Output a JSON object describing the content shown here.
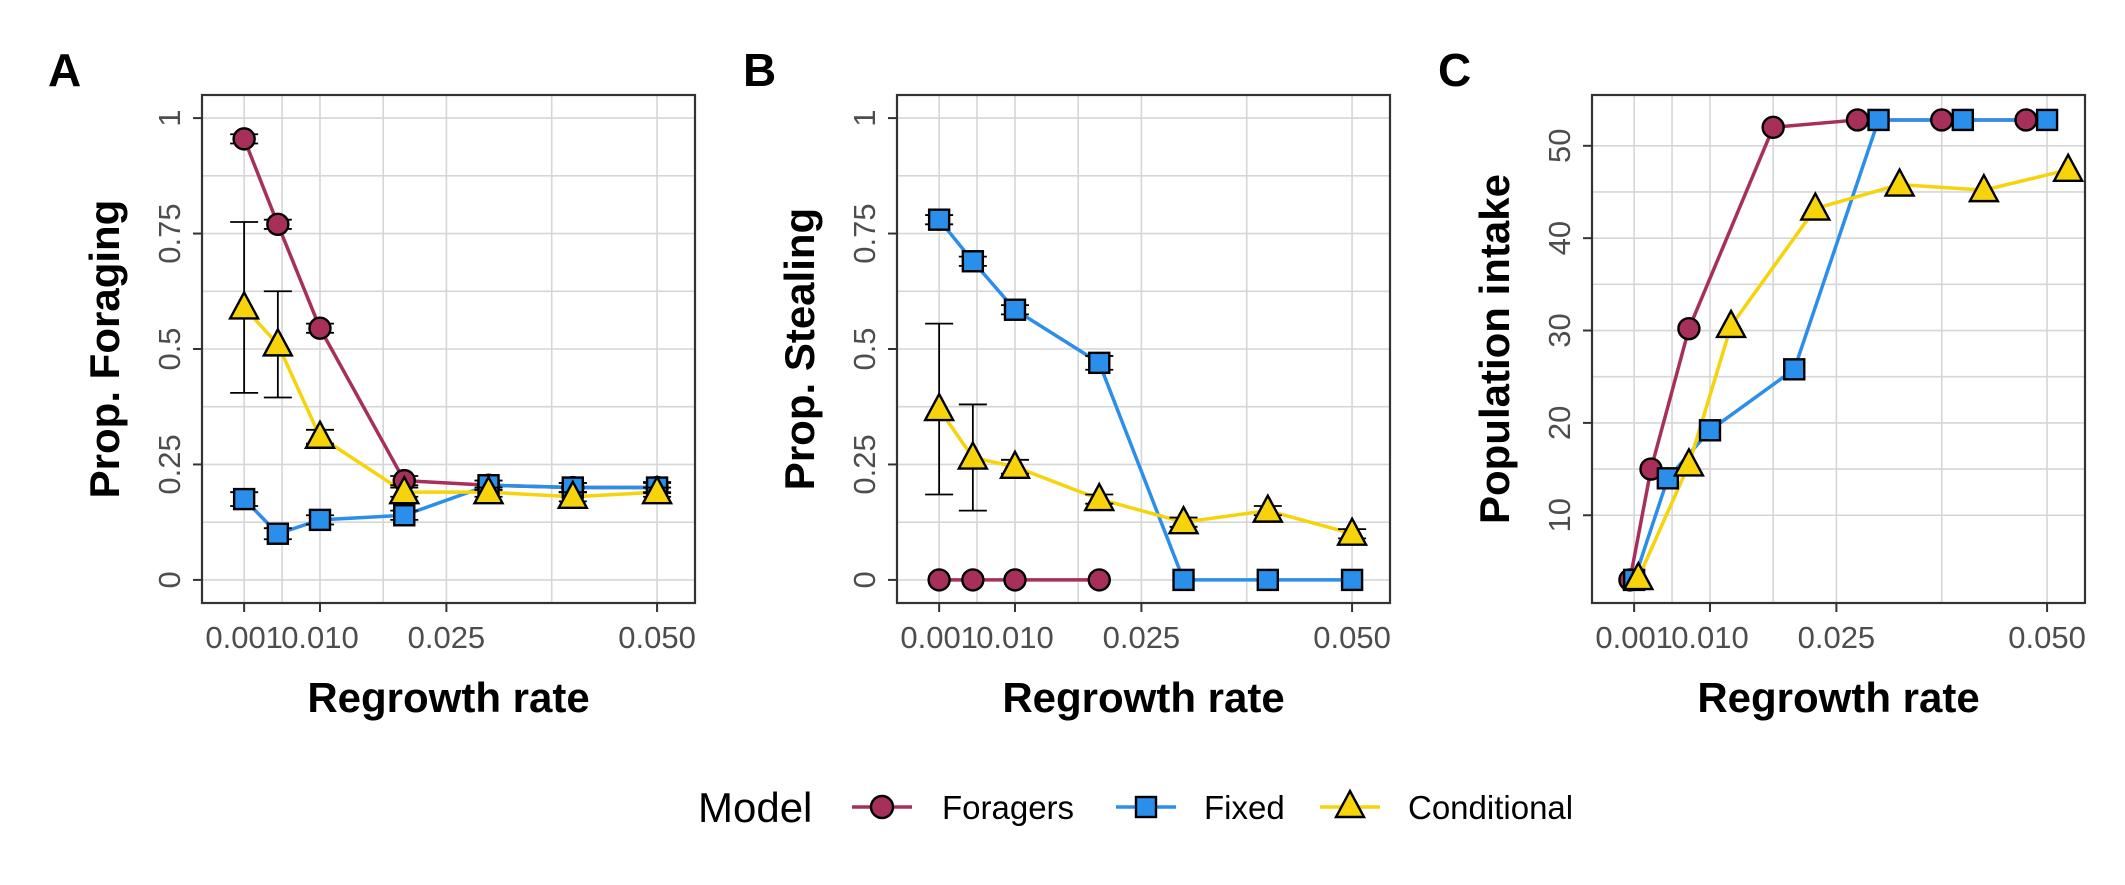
{
  "legend": {
    "title": "Model",
    "entries": [
      {
        "label": "Foragers",
        "color": "#A7305A",
        "shape": "circle"
      },
      {
        "label": "Fixed",
        "color": "#2A8EEB",
        "shape": "square"
      },
      {
        "label": "Conditional",
        "color": "#F6D30A",
        "shape": "triangle"
      }
    ]
  },
  "chart_data": [
    {
      "panel": "A",
      "type": "line",
      "xlabel": "Regrowth rate",
      "ylabel": "Prop. Foraging",
      "xlim": [
        -0.004,
        0.0545
      ],
      "ylim": [
        -0.05,
        1.05
      ],
      "xticks": [
        0.001,
        0.01,
        0.025,
        0.05
      ],
      "xtick_labels": [
        "0.001",
        "0.010",
        "0.025",
        "0.050"
      ],
      "yticks": [
        0,
        0.25,
        0.5,
        0.75,
        1
      ],
      "ytick_labels": [
        "0",
        "0.25",
        "0.5",
        "0.75",
        "1"
      ],
      "grid": true,
      "series": [
        {
          "name": "Foragers",
          "x": [
            0.001,
            0.005,
            0.01,
            0.02,
            0.03,
            0.04,
            0.05
          ],
          "y": [
            0.955,
            0.77,
            0.545,
            0.215,
            0.205,
            0.2,
            0.2
          ],
          "err": [
            0.01,
            0.01,
            0.01,
            0.01,
            0.01,
            0.01,
            0.01
          ]
        },
        {
          "name": "Fixed",
          "x": [
            0.001,
            0.005,
            0.01,
            0.02,
            0.03,
            0.04,
            0.05
          ],
          "y": [
            0.175,
            0.1,
            0.13,
            0.14,
            0.205,
            0.2,
            0.2
          ],
          "err": [
            0.015,
            0.012,
            0.01,
            0.01,
            0.01,
            0.01,
            0.012
          ]
        },
        {
          "name": "Conditional",
          "x": [
            0.001,
            0.005,
            0.01,
            0.02,
            0.03,
            0.04,
            0.05
          ],
          "y": [
            0.59,
            0.51,
            0.31,
            0.19,
            0.19,
            0.18,
            0.19
          ],
          "err": [
            0.185,
            0.115,
            0.015,
            0.01,
            0.01,
            0.01,
            0.01
          ]
        }
      ]
    },
    {
      "panel": "B",
      "type": "line",
      "xlabel": "Regrowth rate",
      "ylabel": "Prop. Stealing",
      "xlim": [
        -0.004,
        0.0545
      ],
      "ylim": [
        -0.05,
        1.05
      ],
      "xticks": [
        0.001,
        0.01,
        0.025,
        0.05
      ],
      "xtick_labels": [
        "0.001",
        "0.010",
        "0.025",
        "0.050"
      ],
      "yticks": [
        0,
        0.25,
        0.5,
        0.75,
        1
      ],
      "ytick_labels": [
        "0",
        "0.25",
        "0.5",
        "0.75",
        "1"
      ],
      "grid": true,
      "series": [
        {
          "name": "Foragers",
          "x": [
            0.001,
            0.005,
            0.01,
            0.02
          ],
          "y": [
            0,
            0,
            0,
            0
          ],
          "err": [
            0,
            0,
            0,
            0
          ]
        },
        {
          "name": "Fixed",
          "x": [
            0.001,
            0.005,
            0.01,
            0.02,
            0.03,
            0.04,
            0.05
          ],
          "y": [
            0.78,
            0.69,
            0.585,
            0.47,
            0,
            0,
            0
          ],
          "err": [
            0.01,
            0.01,
            0.01,
            0.015,
            0,
            0,
            0
          ]
        },
        {
          "name": "Conditional",
          "x": [
            0.001,
            0.005,
            0.01,
            0.02,
            0.03,
            0.04,
            0.05
          ],
          "y": [
            0.37,
            0.265,
            0.245,
            0.175,
            0.125,
            0.15,
            0.1
          ],
          "err": [
            0.185,
            0.115,
            0.015,
            0.01,
            0.01,
            0.01,
            0.01
          ]
        }
      ]
    },
    {
      "panel": "C",
      "type": "line",
      "xlabel": "Regrowth rate",
      "ylabel": "Population intake",
      "xlim": [
        -0.004,
        0.0545
      ],
      "ylim": [
        0.5,
        55.5
      ],
      "xticks": [
        0.001,
        0.01,
        0.025,
        0.05
      ],
      "xtick_labels": [
        "0.001",
        "0.010",
        "0.025",
        "0.050"
      ],
      "yticks": [
        10,
        20,
        30,
        40,
        50
      ],
      "ytick_labels": [
        "10",
        "20",
        "30",
        "40",
        "50"
      ],
      "grid": true,
      "series": [
        {
          "name": "Foragers",
          "x": [
            0.0005,
            0.003,
            0.0075,
            0.0175,
            0.0275,
            0.0375,
            0.0475
          ],
          "y": [
            3,
            15,
            30.2,
            52,
            52.8,
            52.8,
            52.8
          ]
        },
        {
          "name": "Fixed",
          "x": [
            0.001,
            0.005,
            0.01,
            0.02,
            0.03,
            0.04,
            0.05
          ],
          "y": [
            3,
            14,
            19.2,
            25.8,
            52.8,
            52.8,
            52.8
          ]
        },
        {
          "name": "Conditional",
          "x": [
            0.0015,
            0.0075,
            0.0125,
            0.0225,
            0.0325,
            0.0425,
            0.0525
          ],
          "y": [
            3.2,
            15.5,
            30.5,
            43.2,
            45.8,
            45.2,
            47.4
          ]
        }
      ]
    }
  ]
}
